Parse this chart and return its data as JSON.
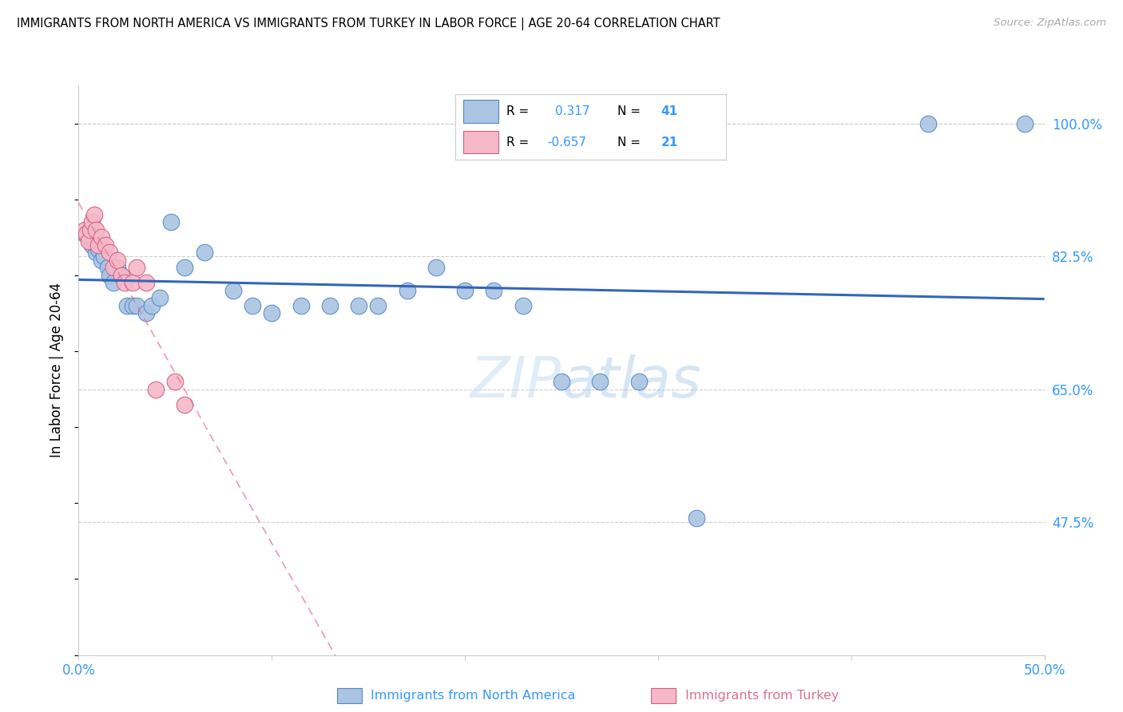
{
  "title": "IMMIGRANTS FROM NORTH AMERICA VS IMMIGRANTS FROM TURKEY IN LABOR FORCE | AGE 20-64 CORRELATION CHART",
  "source": "Source: ZipAtlas.com",
  "ylabel": "In Labor Force | Age 20-64",
  "xlim": [
    0.0,
    0.5
  ],
  "ylim": [
    0.3,
    1.05
  ],
  "xtick_positions": [
    0.0,
    0.1,
    0.2,
    0.3,
    0.4,
    0.5
  ],
  "xticklabels": [
    "0.0%",
    "",
    "",
    "",
    "",
    "50.0%"
  ],
  "yticks_right": [
    0.475,
    0.65,
    0.825,
    1.0
  ],
  "ytick_labels_right": [
    "47.5%",
    "65.0%",
    "82.5%",
    "100.0%"
  ],
  "R_blue": 0.317,
  "N_blue": 41,
  "R_pink": -0.657,
  "N_pink": 21,
  "blue_color": "#aac4e2",
  "blue_edge": "#5588cc",
  "pink_color": "#f5b8c8",
  "pink_edge": "#d06080",
  "blue_line_color": "#3366bb",
  "pink_line_color": "#e07090",
  "watermark_zip": "ZIP",
  "watermark_atlas": "atlas",
  "blue_label": "Immigrants from North America",
  "pink_label": "Immigrants from Turkey",
  "north_america_x": [
    0.003,
    0.005,
    0.006,
    0.007,
    0.008,
    0.009,
    0.01,
    0.012,
    0.013,
    0.015,
    0.016,
    0.018,
    0.02,
    0.022,
    0.025,
    0.028,
    0.03,
    0.035,
    0.038,
    0.042,
    0.048,
    0.055,
    0.065,
    0.08,
    0.09,
    0.1,
    0.115,
    0.13,
    0.145,
    0.155,
    0.17,
    0.185,
    0.2,
    0.215,
    0.23,
    0.25,
    0.27,
    0.29,
    0.32,
    0.44,
    0.49
  ],
  "north_america_y": [
    0.855,
    0.85,
    0.86,
    0.84,
    0.845,
    0.83,
    0.835,
    0.82,
    0.825,
    0.81,
    0.8,
    0.79,
    0.81,
    0.8,
    0.76,
    0.76,
    0.76,
    0.75,
    0.76,
    0.77,
    0.87,
    0.81,
    0.83,
    0.78,
    0.76,
    0.75,
    0.76,
    0.76,
    0.76,
    0.76,
    0.78,
    0.81,
    0.78,
    0.78,
    0.76,
    0.66,
    0.66,
    0.66,
    0.48,
    1.0,
    1.0
  ],
  "turkey_x": [
    0.003,
    0.004,
    0.005,
    0.006,
    0.007,
    0.008,
    0.009,
    0.01,
    0.012,
    0.014,
    0.016,
    0.018,
    0.02,
    0.022,
    0.024,
    0.028,
    0.03,
    0.035,
    0.04,
    0.05,
    0.055
  ],
  "turkey_y": [
    0.86,
    0.855,
    0.845,
    0.86,
    0.87,
    0.88,
    0.86,
    0.84,
    0.85,
    0.84,
    0.83,
    0.81,
    0.82,
    0.8,
    0.79,
    0.79,
    0.81,
    0.79,
    0.65,
    0.66,
    0.63
  ]
}
